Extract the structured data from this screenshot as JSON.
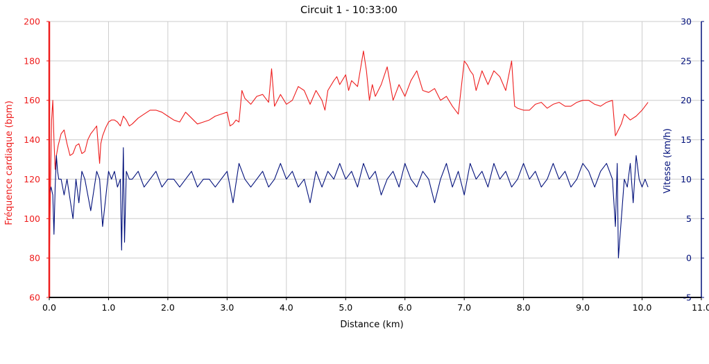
{
  "chart_data": {
    "type": "line",
    "title": "Circuit 1 - 10:33:00",
    "xlabel": "Distance (km)",
    "ylabel_left": "Fréquence cardiaque (bpm)",
    "ylabel_right": "Vitesse (km/h)",
    "xlim": [
      0,
      11
    ],
    "ylim_left": [
      60,
      200
    ],
    "ylim_right": [
      -5,
      30
    ],
    "x_ticks": [
      "0.0",
      "1.0",
      "2.0",
      "3.0",
      "4.0",
      "5.0",
      "6.0",
      "7.0",
      "8.0",
      "9.0",
      "10.0",
      "11.0"
    ],
    "y_left_ticks": [
      "60",
      "80",
      "100",
      "120",
      "140",
      "160",
      "180",
      "200"
    ],
    "y_right_ticks": [
      "-5",
      "0",
      "5",
      "10",
      "15",
      "20",
      "25",
      "30"
    ],
    "grid": true,
    "colors": {
      "heart_rate": "#ee1c1c",
      "speed": "#000f7a",
      "grid": "#cccccc",
      "axis_left": "#ee1c1c",
      "axis_right": "#000f7a"
    },
    "series": [
      {
        "name": "Fréquence cardiaque (bpm)",
        "axis": "left",
        "x": [
          0.0,
          0.02,
          0.04,
          0.06,
          0.08,
          0.1,
          0.12,
          0.15,
          0.2,
          0.25,
          0.3,
          0.35,
          0.4,
          0.45,
          0.5,
          0.55,
          0.6,
          0.65,
          0.7,
          0.75,
          0.8,
          0.85,
          0.87,
          0.9,
          0.95,
          1.0,
          1.05,
          1.1,
          1.15,
          1.2,
          1.25,
          1.3,
          1.35,
          1.4,
          1.5,
          1.6,
          1.7,
          1.8,
          1.9,
          2.0,
          2.1,
          2.2,
          2.3,
          2.4,
          2.5,
          2.6,
          2.7,
          2.8,
          2.9,
          3.0,
          3.05,
          3.1,
          3.15,
          3.2,
          3.25,
          3.3,
          3.4,
          3.5,
          3.6,
          3.7,
          3.75,
          3.8,
          3.85,
          3.9,
          4.0,
          4.1,
          4.2,
          4.3,
          4.4,
          4.5,
          4.6,
          4.65,
          4.7,
          4.8,
          4.85,
          4.9,
          5.0,
          5.05,
          5.1,
          5.2,
          5.3,
          5.35,
          5.4,
          5.45,
          5.5,
          5.6,
          5.7,
          5.8,
          5.9,
          6.0,
          6.1,
          6.2,
          6.3,
          6.4,
          6.5,
          6.6,
          6.7,
          6.8,
          6.9,
          7.0,
          7.05,
          7.1,
          7.15,
          7.2,
          7.3,
          7.4,
          7.5,
          7.6,
          7.7,
          7.8,
          7.85,
          7.9,
          8.0,
          8.1,
          8.2,
          8.3,
          8.4,
          8.5,
          8.6,
          8.7,
          8.8,
          8.9,
          9.0,
          9.1,
          9.2,
          9.3,
          9.4,
          9.5,
          9.55,
          9.6,
          9.65,
          9.7,
          9.8,
          9.9,
          10.0,
          10.1
        ],
        "values": [
          75,
          115,
          150,
          160,
          140,
          125,
          132,
          137,
          143,
          145,
          138,
          132,
          133,
          137,
          138,
          133,
          134,
          140,
          143,
          145,
          147,
          128,
          138,
          142,
          146,
          149,
          150,
          150,
          149,
          147,
          152,
          150,
          147,
          148,
          151,
          153,
          155,
          155,
          154,
          152,
          150,
          149,
          154,
          151,
          148,
          149,
          150,
          152,
          153,
          154,
          147,
          148,
          150,
          149,
          165,
          161,
          158,
          162,
          163,
          159,
          176,
          157,
          160,
          163,
          158,
          160,
          167,
          165,
          158,
          165,
          160,
          155,
          165,
          170,
          172,
          168,
          173,
          165,
          170,
          167,
          185,
          175,
          160,
          168,
          162,
          168,
          177,
          160,
          168,
          162,
          170,
          175,
          165,
          164,
          166,
          160,
          162,
          157,
          153,
          180,
          178,
          175,
          173,
          165,
          175,
          168,
          175,
          172,
          165,
          180,
          157,
          156,
          155,
          155,
          158,
          159,
          156,
          158,
          159,
          157,
          157,
          159,
          160,
          160,
          158,
          157,
          159,
          160,
          142,
          145,
          148,
          153,
          150,
          152,
          155,
          159
        ]
      },
      {
        "name": "Vitesse (km/h)",
        "axis": "right",
        "x": [
          0.0,
          0.03,
          0.06,
          0.08,
          0.1,
          0.12,
          0.14,
          0.16,
          0.2,
          0.25,
          0.3,
          0.4,
          0.45,
          0.5,
          0.55,
          0.6,
          0.7,
          0.8,
          0.85,
          0.9,
          1.0,
          1.05,
          1.1,
          1.15,
          1.2,
          1.22,
          1.25,
          1.27,
          1.3,
          1.35,
          1.4,
          1.5,
          1.6,
          1.7,
          1.8,
          1.9,
          2.0,
          2.1,
          2.2,
          2.3,
          2.4,
          2.5,
          2.6,
          2.7,
          2.8,
          2.9,
          3.0,
          3.1,
          3.2,
          3.3,
          3.4,
          3.5,
          3.6,
          3.7,
          3.8,
          3.9,
          4.0,
          4.1,
          4.2,
          4.3,
          4.4,
          4.5,
          4.6,
          4.7,
          4.8,
          4.9,
          5.0,
          5.1,
          5.2,
          5.3,
          5.4,
          5.5,
          5.6,
          5.7,
          5.8,
          5.9,
          6.0,
          6.1,
          6.2,
          6.3,
          6.4,
          6.5,
          6.6,
          6.7,
          6.8,
          6.9,
          7.0,
          7.1,
          7.2,
          7.3,
          7.4,
          7.5,
          7.6,
          7.7,
          7.8,
          7.9,
          8.0,
          8.1,
          8.2,
          8.3,
          8.4,
          8.5,
          8.6,
          8.7,
          8.8,
          8.9,
          9.0,
          9.1,
          9.2,
          9.3,
          9.4,
          9.5,
          9.55,
          9.58,
          9.6,
          9.7,
          9.75,
          9.8,
          9.85,
          9.9,
          9.95,
          10.0,
          10.05,
          10.1
        ],
        "values": [
          8,
          9,
          8,
          3,
          9,
          13,
          11,
          10,
          10,
          8,
          10,
          5,
          10,
          7,
          11,
          10,
          6,
          11,
          10,
          4,
          11,
          10,
          11,
          9,
          10,
          1,
          14,
          2,
          11,
          10,
          10,
          11,
          9,
          10,
          11,
          9,
          10,
          10,
          9,
          10,
          11,
          9,
          10,
          10,
          9,
          10,
          11,
          7,
          12,
          10,
          9,
          10,
          11,
          9,
          10,
          12,
          10,
          11,
          9,
          10,
          7,
          11,
          9,
          11,
          10,
          12,
          10,
          11,
          9,
          12,
          10,
          11,
          8,
          10,
          11,
          9,
          12,
          10,
          9,
          11,
          10,
          7,
          10,
          12,
          9,
          11,
          8,
          12,
          10,
          11,
          9,
          12,
          10,
          11,
          9,
          10,
          12,
          10,
          11,
          9,
          10,
          12,
          10,
          11,
          9,
          10,
          12,
          11,
          9,
          11,
          12,
          10,
          4,
          12,
          0,
          10,
          9,
          12,
          7,
          13,
          10,
          9,
          10,
          9
        ]
      }
    ]
  }
}
